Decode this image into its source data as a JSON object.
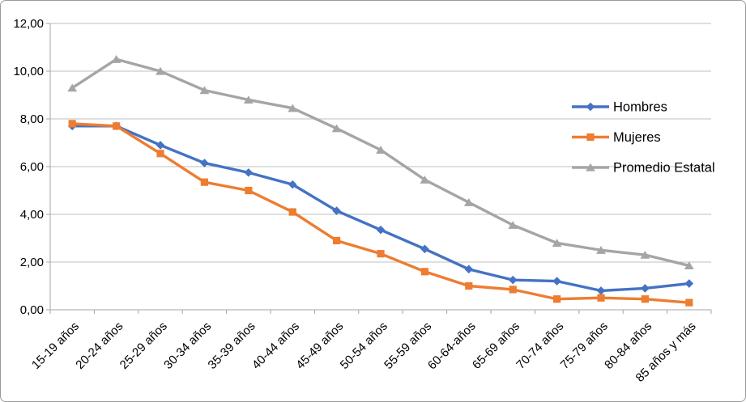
{
  "chart_data": {
    "type": "line",
    "title": "",
    "xlabel": "",
    "ylabel": "",
    "categories": [
      "15-19 años",
      "20-24 años",
      "25-29 años",
      "30-34 años",
      "35-39 años",
      "40-44 años",
      "45-49 años",
      "50-54 años",
      "55-59 años",
      "60-64-años",
      "65-69 años",
      "70-74 años",
      "75-79 años",
      "80-84 años",
      "85 años y más"
    ],
    "series": [
      {
        "name": "Hombres",
        "marker": "diamond",
        "color": "#4472C4",
        "values": [
          7.7,
          7.7,
          6.9,
          6.15,
          5.75,
          5.25,
          4.15,
          3.35,
          2.55,
          1.7,
          1.25,
          1.2,
          0.8,
          0.9,
          1.1
        ]
      },
      {
        "name": "Mujeres",
        "marker": "square",
        "color": "#ED7D31",
        "values": [
          7.8,
          7.7,
          6.55,
          5.35,
          5.0,
          4.1,
          2.9,
          2.35,
          1.6,
          1.0,
          0.85,
          0.45,
          0.5,
          0.45,
          0.3
        ]
      },
      {
        "name": "Promedio Estatal",
        "marker": "triangle",
        "color": "#A5A5A5",
        "values": [
          9.3,
          10.5,
          10.0,
          9.2,
          8.8,
          8.45,
          7.6,
          6.7,
          5.45,
          4.5,
          3.55,
          2.8,
          2.5,
          2.3,
          1.85
        ]
      }
    ],
    "ylim": [
      0,
      12
    ],
    "ytick_step": 2,
    "ytick_labels": [
      "0,00",
      "2,00",
      "4,00",
      "6,00",
      "8,00",
      "10,00",
      "12,00"
    ],
    "grid": true,
    "legend_position": "right-inside",
    "x_label_rotation_deg": -45
  },
  "colors": {
    "background": "#FFFFFF",
    "gridline": "#BFBFBF",
    "axis": "#A6A6A6",
    "text": "#000000",
    "frame_border": "#9B9B9B"
  }
}
